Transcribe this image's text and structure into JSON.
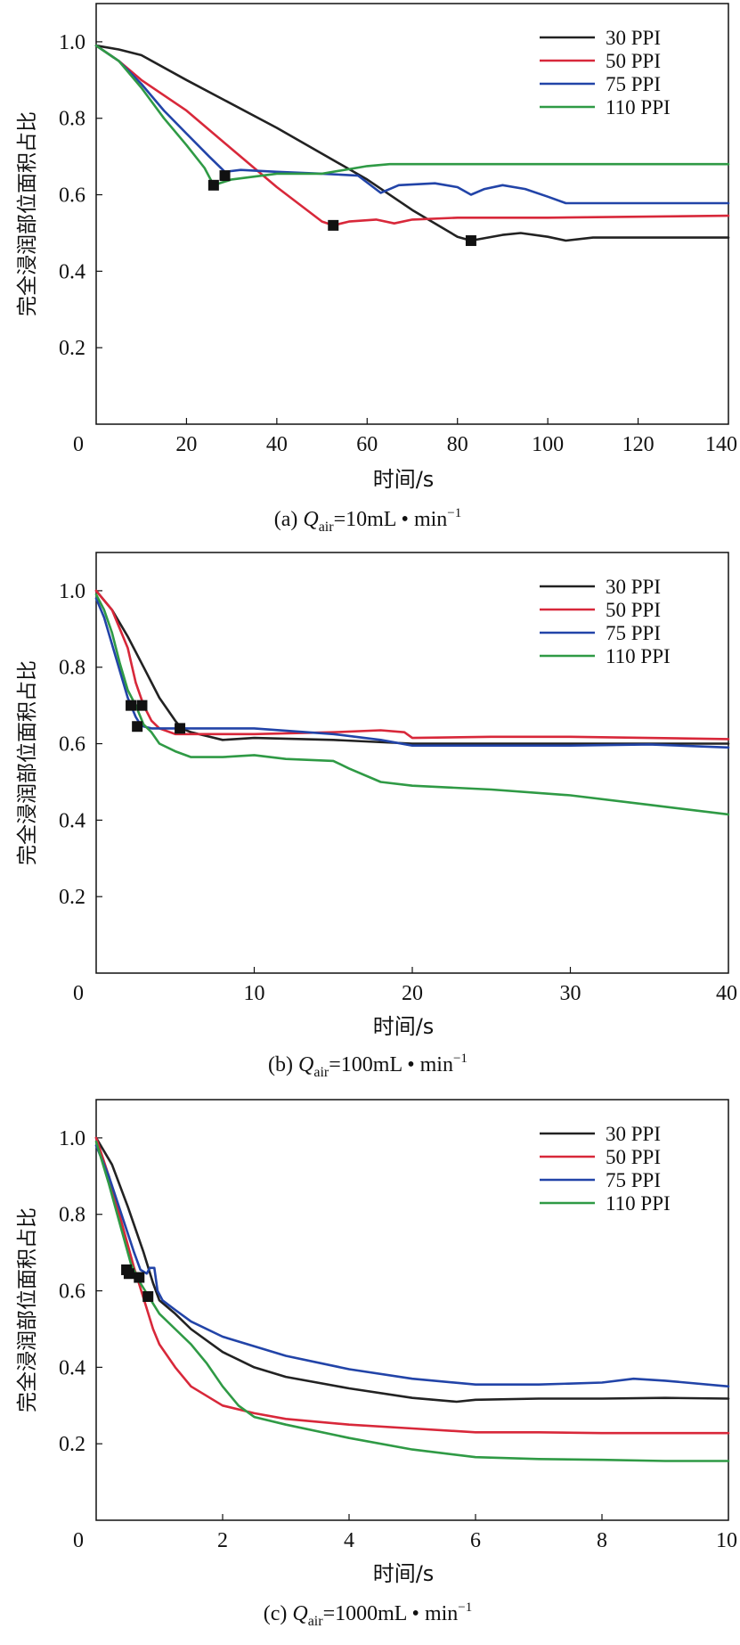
{
  "figure": {
    "ylabel": "完全浸润部位面积占比",
    "xlabel": "时间/s"
  },
  "colors": {
    "30 PPI": "#222222",
    "50 PPI": "#d8283a",
    "75 PPI": "#2244a8",
    "110 PPI": "#2f9a45"
  },
  "chart_data": [
    {
      "type": "line",
      "caption_prefix": "(a) ",
      "caption_q": "Q",
      "caption_sub": "air",
      "caption_value": "=10mL • min",
      "caption_exp": "−1",
      "xlabel": "时间/s",
      "ylabel": "完全浸润部位面积占比",
      "xlim": [
        0,
        140
      ],
      "ylim": [
        0,
        1.1
      ],
      "xticks": [
        0,
        20,
        40,
        60,
        80,
        100,
        120,
        140
      ],
      "xtick_labels": [
        "0",
        "20",
        "40",
        "60",
        "80",
        "100",
        "120",
        "140"
      ],
      "yticks": [
        0.2,
        0.4,
        0.6,
        0.8,
        1.0
      ],
      "ytick_labels": [
        "0.2",
        "0.4",
        "0.6",
        "0.8",
        "1.0"
      ],
      "legend": [
        "30 PPI",
        "50 PPI",
        "75 PPI",
        "110 PPI"
      ],
      "legend_position": "top-right",
      "series": [
        {
          "name": "30 PPI",
          "x": [
            0,
            5,
            10,
            20,
            40,
            60,
            70,
            80,
            83,
            90,
            94,
            100,
            104,
            110,
            140
          ],
          "y": [
            0.99,
            0.98,
            0.965,
            0.9,
            0.775,
            0.64,
            0.56,
            0.49,
            0.48,
            0.495,
            0.5,
            0.49,
            0.48,
            0.488,
            0.488
          ]
        },
        {
          "name": "50 PPI",
          "x": [
            0,
            5,
            10,
            20,
            30,
            40,
            50,
            52.5,
            56,
            62,
            66,
            70,
            80,
            100,
            140
          ],
          "y": [
            0.99,
            0.95,
            0.9,
            0.82,
            0.72,
            0.62,
            0.53,
            0.52,
            0.53,
            0.535,
            0.525,
            0.535,
            0.54,
            0.54,
            0.545
          ]
        },
        {
          "name": "75 PPI",
          "x": [
            0,
            5,
            10,
            15,
            20,
            25,
            28.5,
            32,
            40,
            50,
            58,
            63,
            67,
            75,
            80,
            83,
            86,
            90,
            95,
            100,
            104,
            110,
            140
          ],
          "y": [
            0.99,
            0.95,
            0.89,
            0.82,
            0.76,
            0.7,
            0.66,
            0.665,
            0.66,
            0.655,
            0.65,
            0.605,
            0.625,
            0.63,
            0.62,
            0.6,
            0.615,
            0.625,
            0.615,
            0.595,
            0.578,
            0.578,
            0.578
          ]
        },
        {
          "name": "110 PPI",
          "x": [
            0,
            5,
            10,
            15,
            20,
            24,
            26,
            30,
            40,
            50,
            60,
            65,
            70,
            80,
            100,
            140
          ],
          "y": [
            0.99,
            0.95,
            0.88,
            0.8,
            0.73,
            0.67,
            0.625,
            0.64,
            0.655,
            0.655,
            0.675,
            0.68,
            0.68,
            0.68,
            0.68,
            0.68
          ]
        }
      ],
      "markers": [
        {
          "x": 26,
          "y": 0.625
        },
        {
          "x": 28.5,
          "y": 0.65
        },
        {
          "x": 52.5,
          "y": 0.52
        },
        {
          "x": 83,
          "y": 0.48
        }
      ]
    },
    {
      "type": "line",
      "caption_prefix": "(b) ",
      "caption_q": "Q",
      "caption_sub": "air",
      "caption_value": "=100mL • min",
      "caption_exp": "−1",
      "xlabel": "时间/s",
      "ylabel": "完全浸润部位面积占比",
      "xlim": [
        0,
        40
      ],
      "ylim": [
        0,
        1.1
      ],
      "xticks": [
        0,
        10,
        20,
        30,
        40
      ],
      "xtick_labels": [
        "0",
        "10",
        "20",
        "30",
        "40"
      ],
      "yticks": [
        0.2,
        0.4,
        0.6,
        0.8,
        1.0
      ],
      "ytick_labels": [
        "0.2",
        "0.4",
        "0.6",
        "0.8",
        "1.0"
      ],
      "legend": [
        "30 PPI",
        "50 PPI",
        "75 PPI",
        "110 PPI"
      ],
      "legend_position": "top-right",
      "series": [
        {
          "name": "30 PPI",
          "x": [
            0,
            1,
            2,
            3,
            4,
            5,
            5.4,
            6,
            7,
            8,
            10,
            15,
            20,
            25,
            30,
            35,
            40
          ],
          "y": [
            1.0,
            0.95,
            0.88,
            0.8,
            0.72,
            0.66,
            0.64,
            0.63,
            0.62,
            0.61,
            0.615,
            0.61,
            0.6,
            0.6,
            0.6,
            0.6,
            0.6
          ]
        },
        {
          "name": "50 PPI",
          "x": [
            0,
            1,
            2,
            2.5,
            3,
            3.5,
            4,
            5,
            7,
            10,
            15,
            18,
            19.5,
            20,
            25,
            30,
            40
          ],
          "y": [
            1.0,
            0.95,
            0.85,
            0.76,
            0.7,
            0.66,
            0.64,
            0.625,
            0.625,
            0.625,
            0.63,
            0.635,
            0.63,
            0.615,
            0.618,
            0.618,
            0.612
          ]
        },
        {
          "name": "75 PPI",
          "x": [
            0,
            0.5,
            1,
            1.5,
            2,
            2.5,
            2.8,
            3,
            3.5,
            4,
            6,
            10,
            15,
            18,
            20,
            25,
            30,
            35,
            40
          ],
          "y": [
            0.98,
            0.93,
            0.86,
            0.79,
            0.72,
            0.67,
            0.65,
            0.645,
            0.64,
            0.64,
            0.64,
            0.64,
            0.625,
            0.61,
            0.595,
            0.595,
            0.595,
            0.598,
            0.59
          ]
        },
        {
          "name": "110 PPI",
          "x": [
            0,
            0.5,
            1,
            1.5,
            2,
            2.5,
            3,
            3.5,
            4,
            5,
            6,
            8,
            10,
            12,
            15,
            16,
            18,
            20,
            25,
            30,
            35,
            40
          ],
          "y": [
            0.99,
            0.95,
            0.89,
            0.81,
            0.74,
            0.7,
            0.65,
            0.63,
            0.6,
            0.58,
            0.565,
            0.565,
            0.57,
            0.56,
            0.555,
            0.535,
            0.5,
            0.49,
            0.48,
            0.465,
            0.44,
            0.415
          ]
        }
      ],
      "markers": [
        {
          "x": 2.2,
          "y": 0.7
        },
        {
          "x": 2.6,
          "y": 0.645
        },
        {
          "x": 2.9,
          "y": 0.7
        },
        {
          "x": 5.3,
          "y": 0.64
        }
      ]
    },
    {
      "type": "line",
      "caption_prefix": "(c) ",
      "caption_q": "Q",
      "caption_sub": "air",
      "caption_value": "=1000mL • min",
      "caption_exp": "−1",
      "xlabel": "时间/s",
      "ylabel": "完全浸润部位面积占比",
      "xlim": [
        0,
        10
      ],
      "ylim": [
        0,
        1.1
      ],
      "xticks": [
        0,
        2,
        4,
        6,
        8,
        10
      ],
      "xtick_labels": [
        "0",
        "2",
        "4",
        "6",
        "8",
        "10"
      ],
      "yticks": [
        0.2,
        0.4,
        0.6,
        0.8,
        1.0
      ],
      "ytick_labels": [
        "0.2",
        "0.4",
        "0.6",
        "0.8",
        "1.0"
      ],
      "legend": [
        "30 PPI",
        "50 PPI",
        "75 PPI",
        "110 PPI"
      ],
      "legend_position": "top-right",
      "series": [
        {
          "name": "30 PPI",
          "x": [
            0,
            0.25,
            0.5,
            0.75,
            0.9,
            1.0,
            1.25,
            1.5,
            2,
            2.5,
            3,
            4,
            5,
            5.7,
            6,
            7,
            8,
            9,
            10
          ],
          "y": [
            1.0,
            0.93,
            0.82,
            0.7,
            0.62,
            0.575,
            0.54,
            0.5,
            0.44,
            0.4,
            0.375,
            0.345,
            0.32,
            0.31,
            0.315,
            0.318,
            0.318,
            0.32,
            0.318
          ]
        },
        {
          "name": "50 PPI",
          "x": [
            0,
            0.2,
            0.4,
            0.6,
            0.75,
            0.9,
            1.0,
            1.25,
            1.5,
            2,
            2.5,
            3,
            4,
            5,
            6,
            7,
            8,
            9,
            10
          ],
          "y": [
            1.0,
            0.9,
            0.78,
            0.66,
            0.58,
            0.5,
            0.46,
            0.4,
            0.35,
            0.3,
            0.28,
            0.265,
            0.25,
            0.24,
            0.23,
            0.23,
            0.228,
            0.228,
            0.228
          ]
        },
        {
          "name": "75 PPI",
          "x": [
            0,
            0.2,
            0.4,
            0.6,
            0.7,
            0.8,
            0.85,
            0.92,
            0.97,
            1.05,
            1.25,
            1.5,
            2,
            3,
            4,
            5,
            6,
            7,
            8,
            8.5,
            9,
            10
          ],
          "y": [
            0.98,
            0.9,
            0.8,
            0.7,
            0.655,
            0.645,
            0.66,
            0.66,
            0.6,
            0.575,
            0.55,
            0.52,
            0.48,
            0.43,
            0.395,
            0.37,
            0.355,
            0.355,
            0.36,
            0.37,
            0.365,
            0.35
          ]
        },
        {
          "name": "110 PPI",
          "x": [
            0,
            0.2,
            0.4,
            0.55,
            0.7,
            0.85,
            1.0,
            1.25,
            1.5,
            1.75,
            2,
            2.25,
            2.5,
            3,
            4,
            5,
            6,
            7,
            8,
            9,
            10
          ],
          "y": [
            0.99,
            0.88,
            0.76,
            0.67,
            0.62,
            0.58,
            0.54,
            0.5,
            0.46,
            0.41,
            0.35,
            0.3,
            0.27,
            0.25,
            0.215,
            0.185,
            0.165,
            0.16,
            0.158,
            0.155,
            0.155
          ]
        }
      ],
      "markers": [
        {
          "x": 0.48,
          "y": 0.655
        },
        {
          "x": 0.52,
          "y": 0.645
        },
        {
          "x": 0.68,
          "y": 0.635
        },
        {
          "x": 0.82,
          "y": 0.585
        }
      ]
    }
  ]
}
